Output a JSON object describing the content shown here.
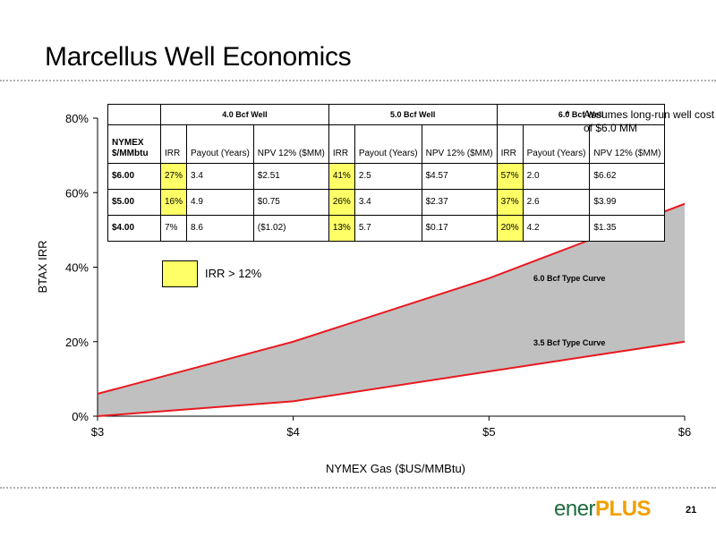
{
  "page": {
    "title": "Marcellus Well Economics",
    "page_number": "21",
    "logo_text_1": "ener",
    "logo_text_2": "PLUS",
    "note_star": "*",
    "note_text": "Assumes long-run well cost of $6.0 MM",
    "legend_text": "IRR > 12%"
  },
  "colors": {
    "curve": "#e8191f",
    "fill": "#c0c0c0",
    "highlight": "#ffff66"
  },
  "table": {
    "groups": [
      "4.0 Bcf Well",
      "5.0 Bcf Well",
      "6.0 Bcf Well"
    ],
    "row_header": "NYMEX $/MMbtu",
    "col_labels": [
      "IRR",
      "Payout (Years)",
      "NPV 12% ($MM)"
    ],
    "rows": [
      {
        "price": "$6.00",
        "cells": [
          {
            "v": "27%",
            "hl": true
          },
          {
            "v": "3.4"
          },
          {
            "v": "$2.51"
          },
          {
            "v": "41%",
            "hl": true
          },
          {
            "v": "2.5"
          },
          {
            "v": "$4.57"
          },
          {
            "v": "57%",
            "hl": true
          },
          {
            "v": "2.0"
          },
          {
            "v": "$6.62"
          }
        ]
      },
      {
        "price": "$5.00",
        "cells": [
          {
            "v": "16%",
            "hl": true
          },
          {
            "v": "4.9"
          },
          {
            "v": "$0.75"
          },
          {
            "v": "26%",
            "hl": true
          },
          {
            "v": "3.4"
          },
          {
            "v": "$2.37"
          },
          {
            "v": "37%",
            "hl": true
          },
          {
            "v": "2.6"
          },
          {
            "v": "$3.99"
          }
        ]
      },
      {
        "price": "$4.00",
        "cells": [
          {
            "v": "7%"
          },
          {
            "v": "8.6"
          },
          {
            "v": "($1.02)"
          },
          {
            "v": "13%",
            "hl": true
          },
          {
            "v": "5.7"
          },
          {
            "v": "$0.17"
          },
          {
            "v": "20%",
            "hl": true
          },
          {
            "v": "4.2"
          },
          {
            "v": "$1.35"
          }
        ]
      }
    ]
  },
  "chart_data": {
    "type": "area",
    "title": "",
    "xlabel": "NYMEX Gas ($US/MMBtu)",
    "ylabel": "BTAX IRR",
    "x": [
      3,
      4,
      5,
      6
    ],
    "x_tick_labels": [
      "$3",
      "$4",
      "$5",
      "$6"
    ],
    "y_tick_labels": [
      "0%",
      "20%",
      "40%",
      "60%",
      "80%"
    ],
    "xlim": [
      3,
      6
    ],
    "ylim": [
      0,
      80
    ],
    "series": [
      {
        "name": "6.0 Bcf Type Curve",
        "values": [
          6,
          20,
          37,
          57
        ]
      },
      {
        "name": "3.5 Bcf Type Curve",
        "values": [
          0,
          4,
          12,
          20
        ]
      }
    ],
    "grid": false
  }
}
